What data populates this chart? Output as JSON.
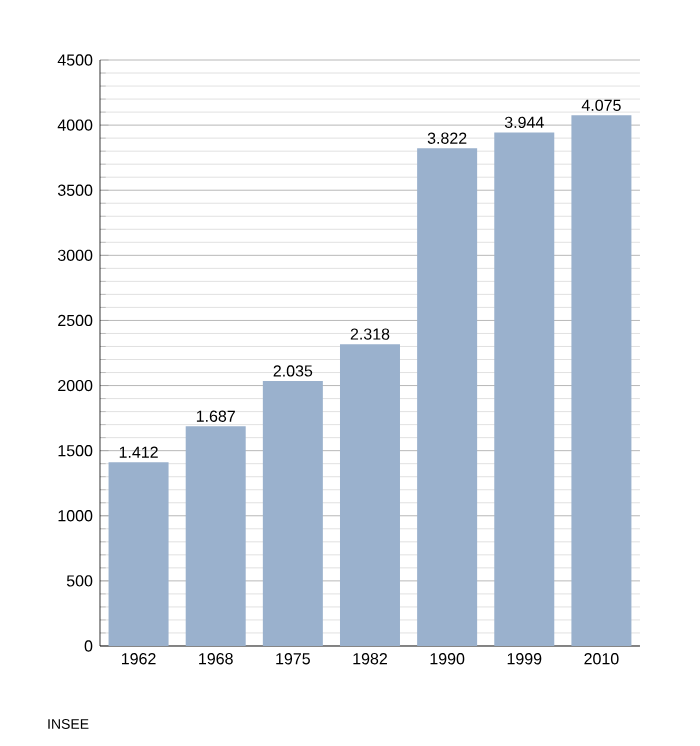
{
  "chart_data": {
    "type": "bar",
    "categories": [
      "1962",
      "1968",
      "1975",
      "1982",
      "1990",
      "1999",
      "2010"
    ],
    "values": [
      1412,
      1687,
      2035,
      2318,
      3822,
      3944,
      4075
    ],
    "value_labels": [
      "1.412",
      "1.687",
      "2.035",
      "2.318",
      "3.822",
      "3.944",
      "4.075"
    ],
    "color": "#9ab1cd",
    "ylim": [
      0,
      4500
    ],
    "yticks": [
      0,
      500,
      1000,
      1500,
      2000,
      2500,
      3000,
      3500,
      4000,
      4500
    ],
    "grid": "y",
    "annotations": [
      "INSEE"
    ]
  }
}
